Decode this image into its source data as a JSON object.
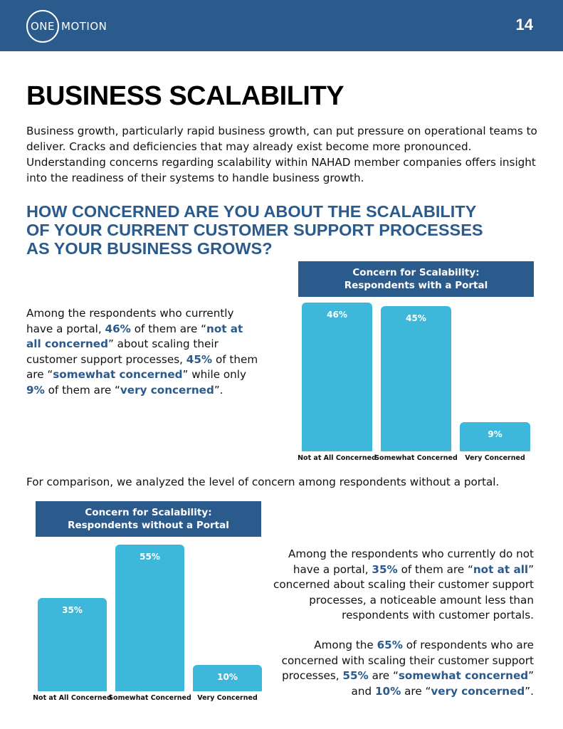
{
  "header": {
    "logo_one": "ONE",
    "logo_motion": "MOTION",
    "page_number": "14"
  },
  "title": "BUSINESS SCALABILITY",
  "intro": "Business growth, particularly rapid business growth, can put pressure on operational teams to deliver. Cracks and deficiencies that may already exist become more pronounced. Understanding concerns regarding scalability within NAHAD member companies offers insight into the readiness of their systems to handle business growth.",
  "question": "HOW CONCERNED ARE YOU ABOUT THE SCALABILITY OF YOUR CURRENT CUSTOMER SUPPORT PROCESSES AS YOUR BUSINESS GROWS?",
  "para1": {
    "t1": "Among the respondents who currently have a portal, ",
    "b1": "46%",
    "t2": " of them are “",
    "b2": "not at all concerned",
    "t3": "” about scaling their customer support processes, ",
    "b3": "45%",
    "t4": " of them are “",
    "b4": "somewhat concerned",
    "t5": "” while only ",
    "b5": "9%",
    "t6": " of them are “",
    "b6": "very concerned",
    "t7": "”."
  },
  "comparison": "For comparison, we analyzed the level of concern among respondents without a portal.",
  "para2": {
    "t1": "Among the respondents who currently do not have a portal, ",
    "b1": "35%",
    "t2": " of them are “",
    "b2": "not at all",
    "t3": "” concerned about scaling their customer support processes, a noticeable amount less than respondents with customer portals."
  },
  "para3": {
    "t1": "Among the ",
    "b1": "65%",
    "t2": " of respondents who are concerned with scaling their customer support processes, ",
    "b2": "55%",
    "t3": " are “",
    "b3": "somewhat concerned",
    "t4": "” and ",
    "b4": "10%",
    "t5": " are “",
    "b5": "very concerned",
    "t6": "”."
  },
  "colors": {
    "brand": "#2b5a8c",
    "bar": "#3eb8da"
  },
  "chart_data": [
    {
      "type": "bar",
      "title_line1": "Concern for Scalability:",
      "title_line2": "Respondents with a Portal",
      "categories": [
        "Not at All Concerned",
        "Somewhat Concerned",
        "Very Concerned"
      ],
      "values": [
        46,
        45,
        9
      ],
      "labels": [
        "46%",
        "45%",
        "9%"
      ]
    },
    {
      "type": "bar",
      "title_line1": "Concern for Scalability:",
      "title_line2": "Respondents without a Portal",
      "categories": [
        "Not at All Concerned",
        "Somewhat Concerned",
        "Very Concerned"
      ],
      "values": [
        35,
        55,
        10
      ],
      "labels": [
        "35%",
        "55%",
        "10%"
      ]
    }
  ]
}
